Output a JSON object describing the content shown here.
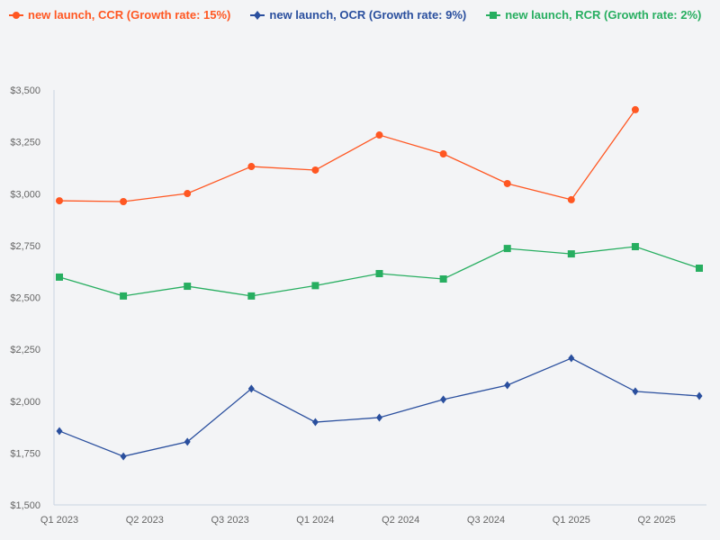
{
  "chart_data": {
    "type": "line",
    "title": "",
    "xlabel": "",
    "ylabel": "",
    "x": [
      "2023-01",
      "2023-04",
      "2023-07",
      "2023-10",
      "2024-01",
      "2024-04",
      "2024-07",
      "2024-10",
      "2025-01",
      "2025-04",
      "2025-07"
    ],
    "x_ticks": [
      {
        "date": "2023-01",
        "label": "Q1 2023"
      },
      {
        "date": "2023-05",
        "label": "Q2 2023"
      },
      {
        "date": "2023-09",
        "label": "Q3 2023"
      },
      {
        "date": "2024-01",
        "label": "Q1 2024"
      },
      {
        "date": "2024-05",
        "label": "Q2 2024"
      },
      {
        "date": "2024-09",
        "label": "Q3 2024"
      },
      {
        "date": "2025-01",
        "label": "Q1 2025"
      },
      {
        "date": "2025-05",
        "label": "Q2 2025"
      }
    ],
    "ylim": [
      1500,
      3500
    ],
    "y_ticks": [
      1500,
      1750,
      2000,
      2250,
      2500,
      2750,
      3000,
      3250,
      3500
    ],
    "y_tick_labels": [
      "$1,500",
      "$1,750",
      "$2,000",
      "$2,250",
      "$2,500",
      "$2,750",
      "$3,000",
      "$3,250",
      "$3,500"
    ],
    "grid": false,
    "legend_position": "top-left",
    "series": [
      {
        "name": "new launch, CCR (Growth rate: 15%)",
        "color": "#ff5722",
        "marker": "circle",
        "values": [
          2966,
          2962,
          3001,
          3131,
          3114,
          3283,
          3192,
          3049,
          2971,
          3405,
          null
        ]
      },
      {
        "name": "new launch, OCR (Growth rate: 9%)",
        "color": "#2a4f9e",
        "marker": "diamond",
        "values": [
          1856,
          1734,
          1804,
          2060,
          1899,
          1921,
          2008,
          2077,
          2207,
          2047,
          2025
        ]
      },
      {
        "name": "new launch, RCR (Growth rate: 2%)",
        "color": "#27ae60",
        "marker": "square",
        "values": [
          2598,
          2507,
          2554,
          2507,
          2557,
          2615,
          2589,
          2736,
          2710,
          2745,
          2641
        ]
      }
    ]
  }
}
